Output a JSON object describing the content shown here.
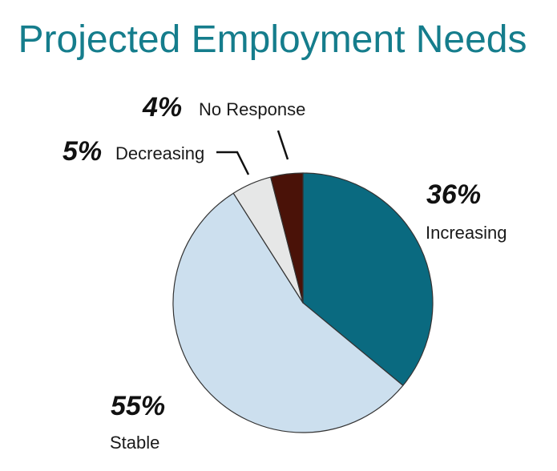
{
  "colors": {
    "title": "#157d8c",
    "slice_outline": "#333333",
    "leader_line": "#111111"
  },
  "chart_data": {
    "type": "pie",
    "title": "Projected Employment Needs",
    "start_angle_deg": 0,
    "direction": "clockwise",
    "slices": [
      {
        "label": "Increasing",
        "value": 36,
        "value_label": "36%",
        "color": "#0a6a80"
      },
      {
        "label": "Stable",
        "value": 55,
        "value_label": "55%",
        "color": "#ccdfee"
      },
      {
        "label": "Decreasing",
        "value": 5,
        "value_label": "5%",
        "color": "#e6e7e7"
      },
      {
        "label": "No Response",
        "value": 4,
        "value_label": "4%",
        "color": "#4a1208"
      }
    ],
    "legend": "none"
  }
}
